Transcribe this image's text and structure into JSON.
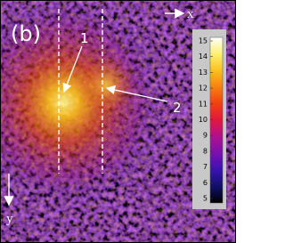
{
  "panel_label": "(b)",
  "annotations": [
    {
      "label": "1"
    },
    {
      "label": "2"
    }
  ],
  "axes": {
    "x": "x",
    "y": "y"
  },
  "colorbar": {
    "ticks": [
      5,
      6,
      7,
      8,
      9,
      10,
      11,
      12,
      13,
      14,
      15
    ]
  }
}
